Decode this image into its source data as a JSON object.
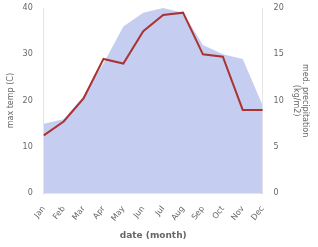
{
  "chart_data": {
    "type": "line",
    "xlabel": "date (month)",
    "ylabel": "max temp (C)",
    "y2label": "med. precipitation\n(kg/m2)",
    "categories": [
      "Jan",
      "Feb",
      "Mar",
      "Apr",
      "May",
      "Jun",
      "Jul",
      "Aug",
      "Sep",
      "Oct",
      "Nov",
      "Dec"
    ],
    "series": [
      {
        "type": "line",
        "color": "#aa3333",
        "values": [
          12.5,
          15.5,
          20.5,
          29.0,
          28.0,
          35.0,
          38.5,
          39.0,
          30.0,
          29.5,
          18.0,
          18.0
        ]
      },
      {
        "type": "area",
        "axis": "y2",
        "color": "#c5cef0",
        "values": [
          7.5,
          8.0,
          10.5,
          14.0,
          18.0,
          19.5,
          20.0,
          19.5,
          16.0,
          15.0,
          14.5,
          9.5
        ]
      }
    ],
    "ylim": [
      0,
      40
    ],
    "yticks": [
      0,
      10,
      20,
      30,
      40
    ],
    "y2lim": [
      0,
      20
    ],
    "y2ticks": [
      0,
      5,
      10,
      15,
      20
    ],
    "grid": false
  }
}
